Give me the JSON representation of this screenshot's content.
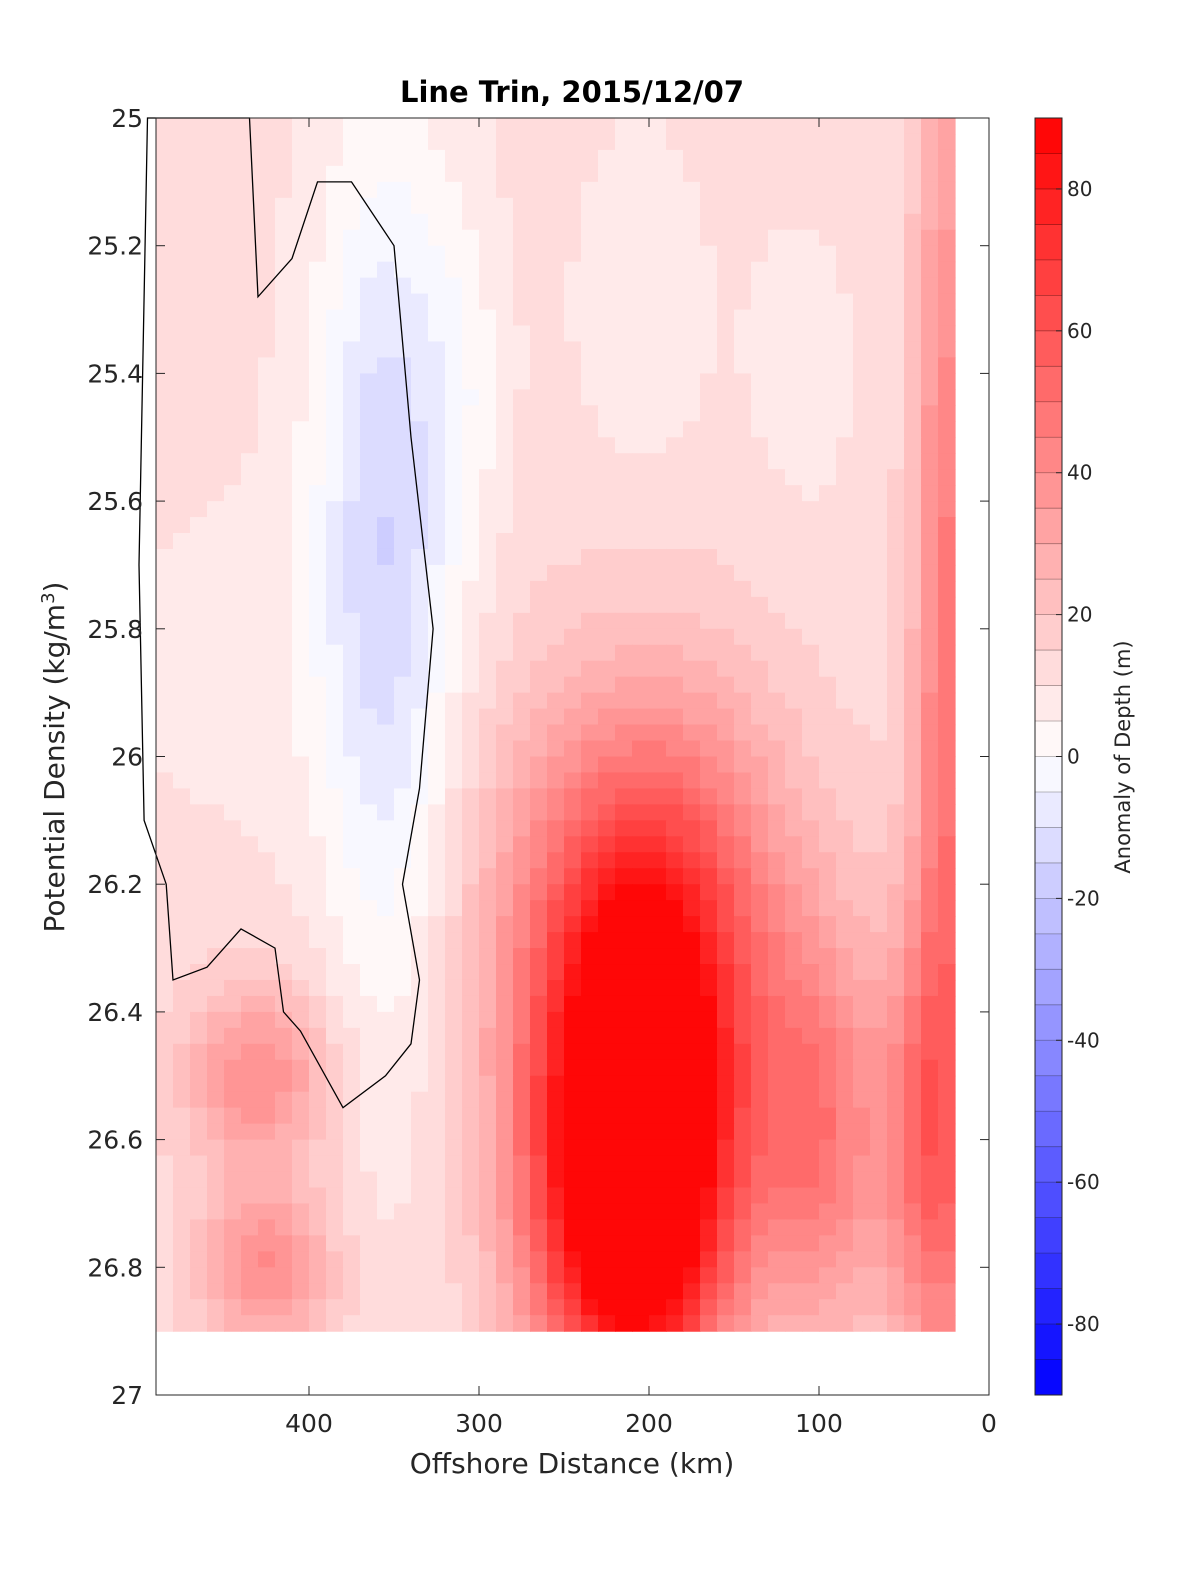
{
  "chart_data": {
    "type": "contour",
    "title": "Line Trin, 2015/12/07",
    "xlabel": "Offshore Distance (km)",
    "ylabel_main": "Potential Density (kg/m",
    "ylabel_sup": "3",
    "ylabel_close": ")",
    "xlim": [
      490,
      0
    ],
    "ylim": [
      25,
      27
    ],
    "x_reversed": true,
    "y_reversed": true,
    "xticks": [
      400,
      300,
      200,
      100,
      0
    ],
    "xtick_labels": [
      "400",
      "300",
      "200",
      "100",
      "0"
    ],
    "yticks": [
      25,
      25.2,
      25.4,
      25.6,
      25.8,
      26,
      26.2,
      26.4,
      26.6,
      26.8,
      27
    ],
    "ytick_labels": [
      "25",
      "25.2",
      "25.4",
      "25.6",
      "25.8",
      "26",
      "26.2",
      "26.4",
      "26.6",
      "26.8",
      "27"
    ],
    "colorbar": {
      "label": "Anomaly of Depth (m)",
      "limits": [
        -90,
        90
      ],
      "ticks": [
        80,
        60,
        40,
        20,
        0,
        -20,
        -40,
        -60,
        -80
      ],
      "tick_labels": [
        "80",
        "60",
        "40",
        "20",
        "0",
        "-20",
        "-40",
        "-60",
        "-80"
      ],
      "colormap": "blue-white-red",
      "low_color": "#0000ff",
      "mid_color": "#ffffff",
      "high_color": "#ff0000",
      "levels": 36
    },
    "contour_line_level": 0,
    "data_extent": {
      "x_max": 490,
      "x_min": 20,
      "y_min": 25,
      "y_max": 26.9
    },
    "features": [
      {
        "x": 210,
        "y": 26.72,
        "value": 88,
        "sx": 40,
        "sy": 0.22
      },
      {
        "x": 205,
        "y": 26.42,
        "value": 55,
        "sx": 48,
        "sy": 0.25
      },
      {
        "x": 200,
        "y": 26.2,
        "value": 30,
        "sx": 60,
        "sy": 0.25
      },
      {
        "x": 430,
        "y": 26.5,
        "value": 28,
        "sx": 30,
        "sy": 0.1
      },
      {
        "x": 425,
        "y": 26.8,
        "value": 28,
        "sx": 28,
        "sy": 0.09
      },
      {
        "x": 100,
        "y": 26.6,
        "value": 32,
        "sx": 25,
        "sy": 0.22
      },
      {
        "x": 40,
        "y": 26.6,
        "value": 30,
        "sx": 20,
        "sy": 0.25
      },
      {
        "x": 25,
        "y": 25.9,
        "value": 35,
        "sx": 14,
        "sy": 0.8
      },
      {
        "x": 355,
        "y": 25.8,
        "value": -18,
        "sx": 28,
        "sy": 0.5
      },
      {
        "x": 355,
        "y": 25.5,
        "value": -10,
        "sx": 35,
        "sy": 0.35
      },
      {
        "x": 310,
        "y": 25.4,
        "value": -6,
        "sx": 18,
        "sy": 0.2
      },
      {
        "x": 205,
        "y": 25.3,
        "value": -5,
        "sx": 30,
        "sy": 0.22
      },
      {
        "x": 440,
        "y": 25.85,
        "value": -4,
        "sx": 55,
        "sy": 0.2
      },
      {
        "x": 110,
        "y": 25.4,
        "value": -4,
        "sx": 25,
        "sy": 0.2
      }
    ],
    "background_value": 12,
    "zero_contour": [
      [
        435,
        25.0
      ],
      [
        430,
        25.28
      ],
      [
        410,
        25.22
      ],
      [
        395,
        25.1
      ],
      [
        375,
        25.1
      ],
      [
        350,
        25.2
      ],
      [
        340,
        25.5
      ],
      [
        327,
        25.8
      ],
      [
        335,
        26.05
      ],
      [
        345,
        26.2
      ],
      [
        335,
        26.35
      ],
      [
        340,
        26.45
      ],
      [
        355,
        26.5
      ],
      [
        380,
        26.55
      ],
      [
        405,
        26.43
      ],
      [
        415,
        26.4
      ],
      [
        420,
        26.3
      ],
      [
        440,
        26.27
      ],
      [
        460,
        26.33
      ],
      [
        480,
        26.35
      ],
      [
        484,
        26.2
      ],
      [
        497,
        26.1
      ],
      [
        500,
        25.7
      ],
      [
        495,
        25.0
      ]
    ]
  }
}
